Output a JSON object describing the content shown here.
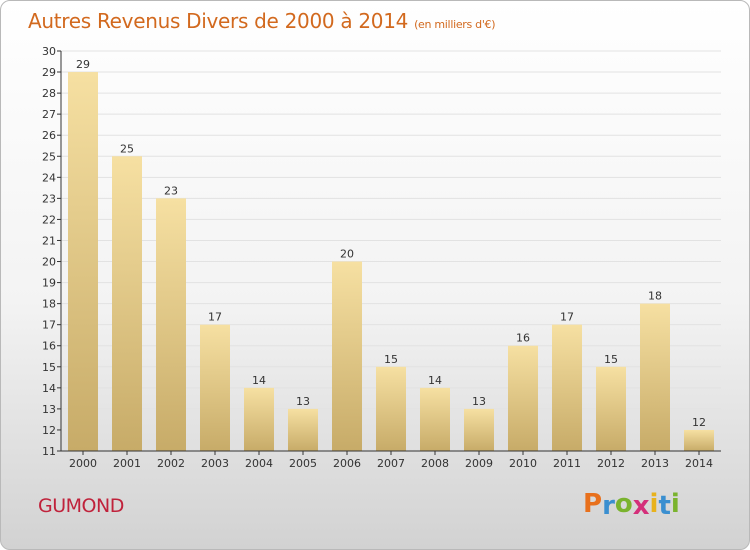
{
  "header": {
    "title": "Autres Revenus Divers de 2000 à 2014",
    "unit": "(en milliers d'€)"
  },
  "footer": {
    "place": "GUMOND",
    "logo_letters": [
      "P",
      "r",
      "o",
      "x",
      "i",
      "t",
      "i"
    ],
    "logo_colors": [
      "#e8701c",
      "#3a8fd0",
      "#7ab32e",
      "#d42f7a",
      "#e8b21c",
      "#3a8fd0",
      "#7ab32e"
    ]
  },
  "chart_data": {
    "type": "bar",
    "title": "Autres Revenus Divers de 2000 à 2014",
    "subtitle": "(en milliers d'€)",
    "categories": [
      "2000",
      "2001",
      "2002",
      "2003",
      "2004",
      "2005",
      "2006",
      "2007",
      "2008",
      "2009",
      "2010",
      "2011",
      "2012",
      "2013",
      "2014"
    ],
    "values": [
      29,
      25,
      23,
      17,
      14,
      13,
      20,
      15,
      14,
      13,
      16,
      17,
      15,
      18,
      12
    ],
    "ylim": [
      11,
      30
    ],
    "yticks": [
      11,
      12,
      13,
      14,
      15,
      16,
      17,
      18,
      19,
      20,
      21,
      22,
      23,
      24,
      25,
      26,
      27,
      28,
      29,
      30
    ],
    "grid": true,
    "data_labels": true,
    "colors": {
      "bar_top": "#f6e0a2",
      "bar_bottom": "#c7ab68",
      "text": "#333333",
      "axis": "#333333",
      "grid": "#e2e2e2"
    }
  }
}
